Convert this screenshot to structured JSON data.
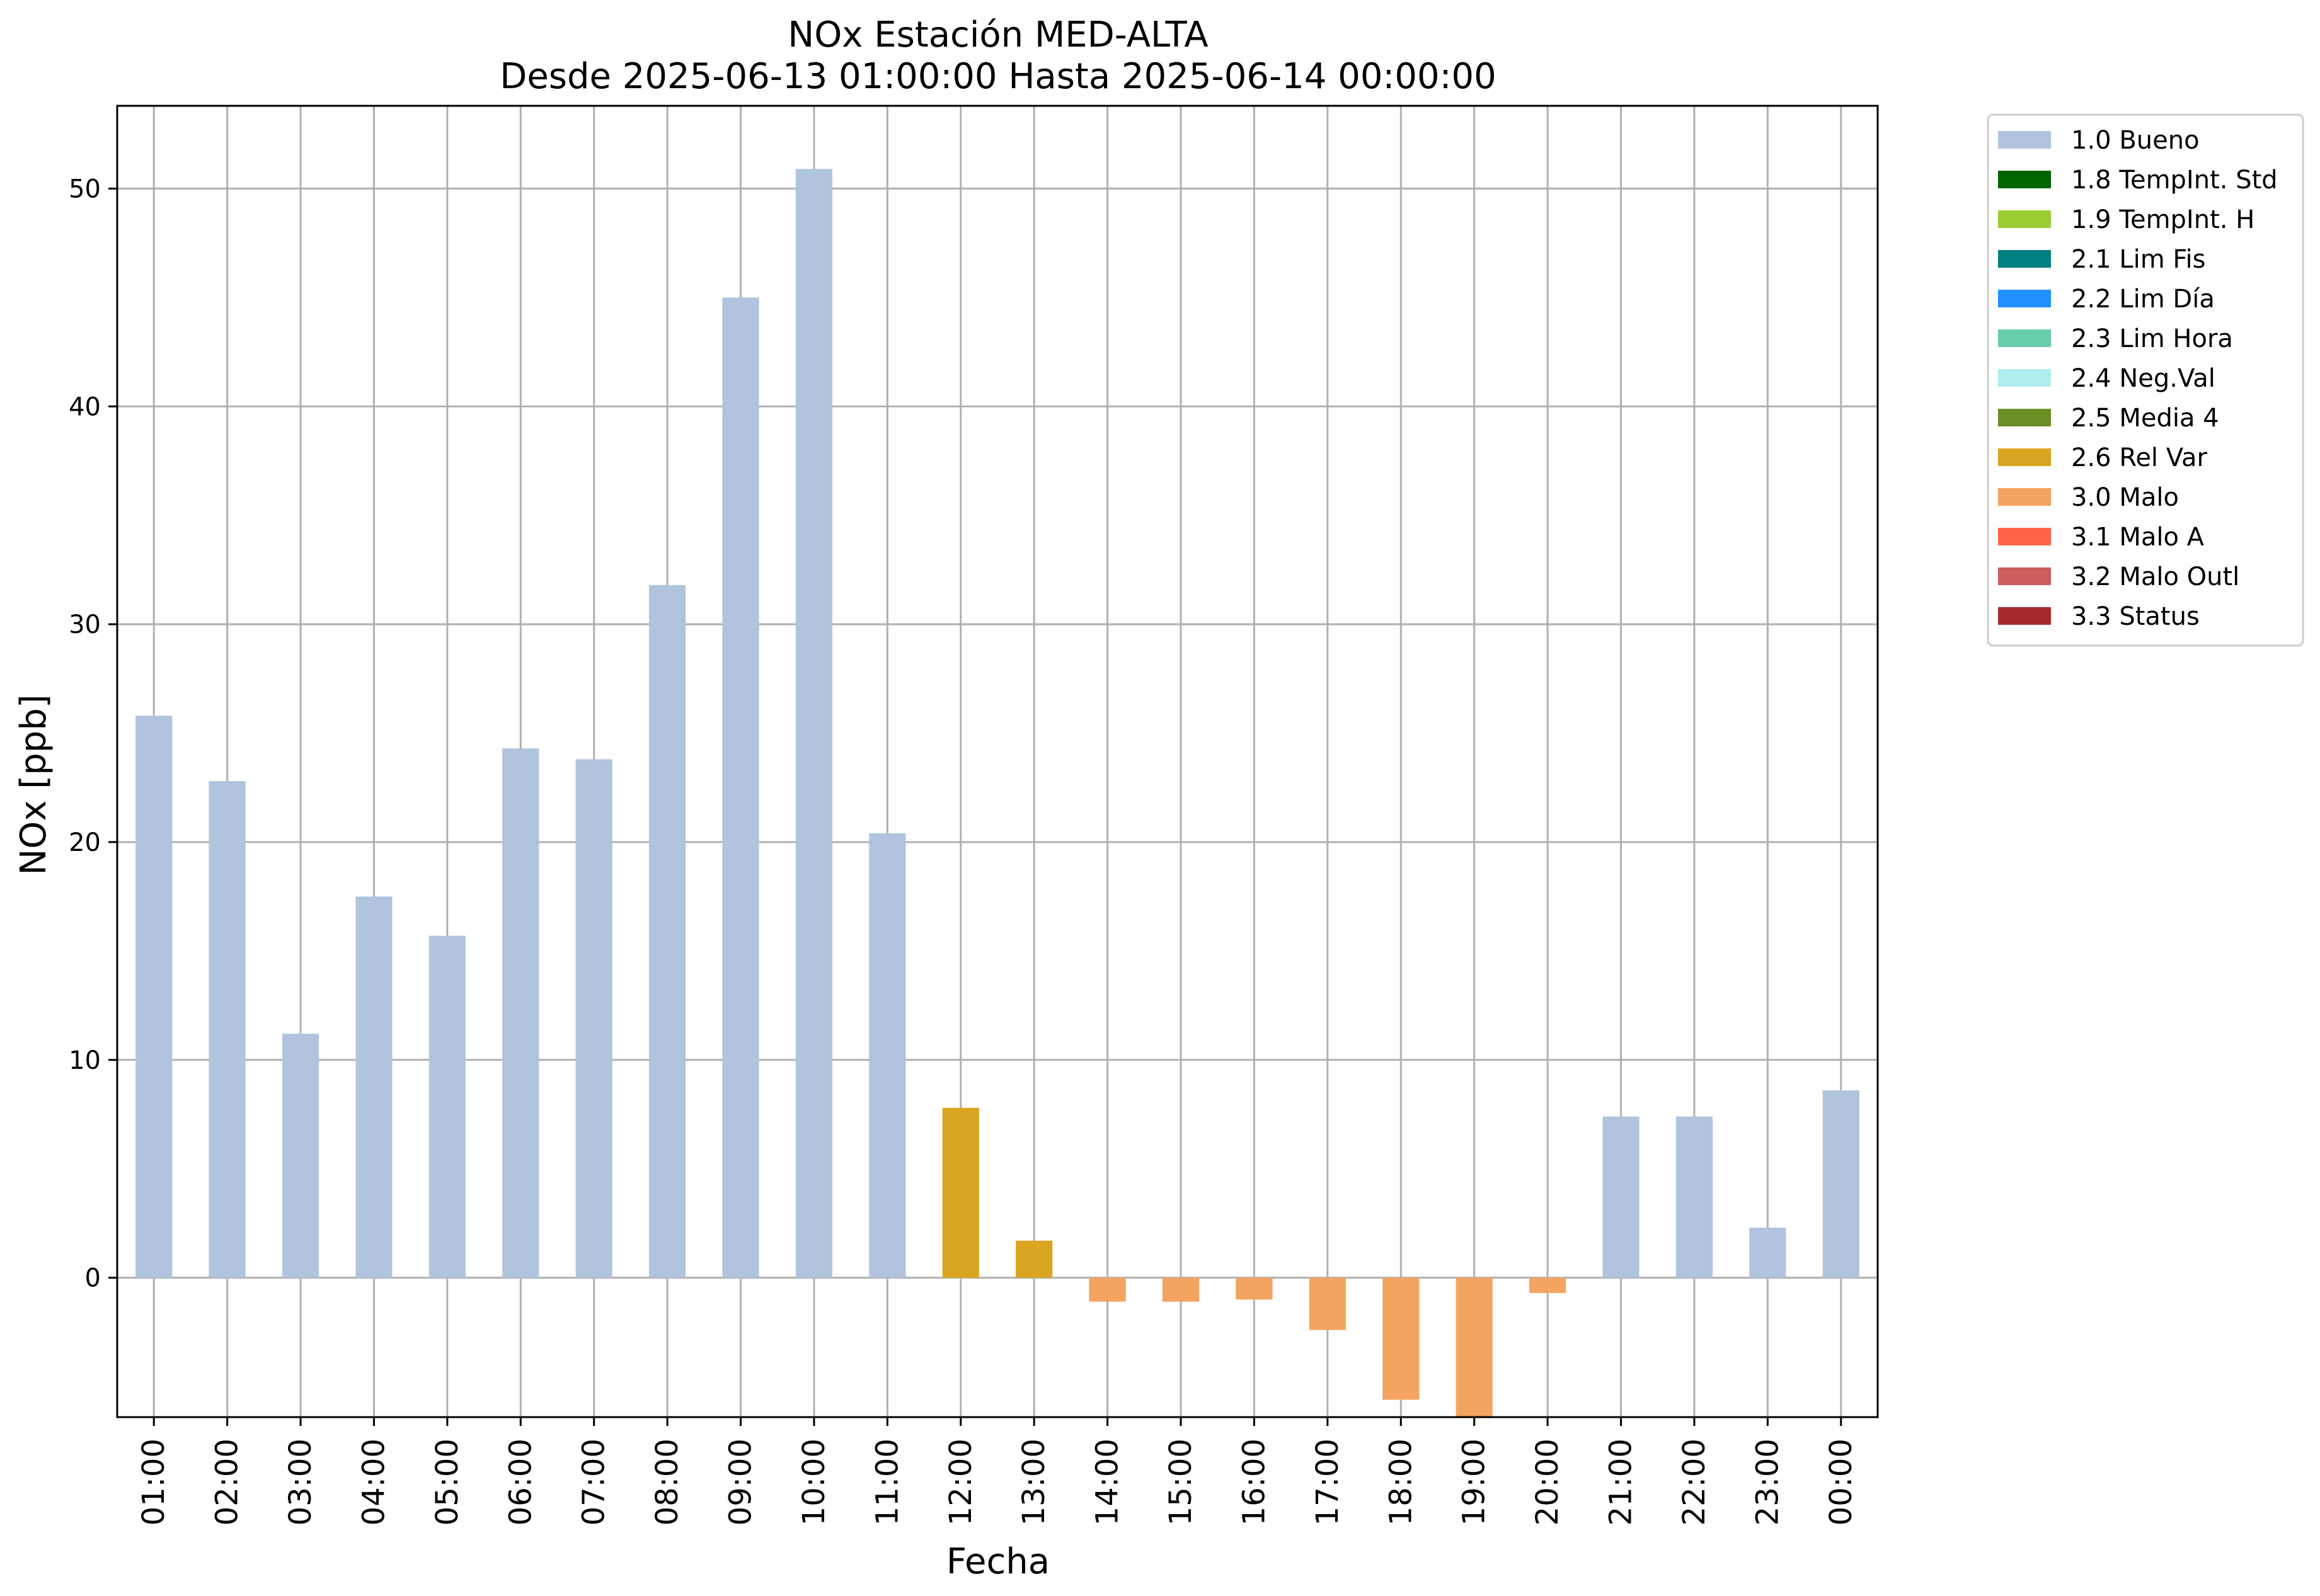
{
  "chart_data": {
    "type": "bar",
    "title": "NOx Estación MED-ALTA",
    "subtitle": "Desde 2025-06-13 01:00:00 Hasta 2025-06-14 00:00:00",
    "xlabel": "Fecha",
    "ylabel": "NOx [ppb]",
    "ylim": [
      -6.4,
      53.8
    ],
    "yticks": [
      0,
      10,
      20,
      30,
      40,
      50
    ],
    "grid": true,
    "legend_position": "outside-top-right",
    "categories": [
      "01:00",
      "02:00",
      "03:00",
      "04:00",
      "05:00",
      "06:00",
      "07:00",
      "08:00",
      "09:00",
      "10:00",
      "11:00",
      "12:00",
      "13:00",
      "14:00",
      "15:00",
      "16:00",
      "17:00",
      "18:00",
      "19:00",
      "20:00",
      "21:00",
      "22:00",
      "23:00",
      "00:00"
    ],
    "values": [
      25.8,
      22.8,
      11.2,
      17.5,
      15.7,
      24.3,
      23.8,
      31.8,
      45.0,
      50.9,
      20.4,
      7.8,
      1.7,
      -1.1,
      -1.1,
      -1.0,
      -2.4,
      -5.6,
      -6.4,
      -0.7,
      7.4,
      7.4,
      2.3,
      8.6
    ],
    "flags": [
      "1.0 Bueno",
      "1.0 Bueno",
      "1.0 Bueno",
      "1.0 Bueno",
      "1.0 Bueno",
      "1.0 Bueno",
      "1.0 Bueno",
      "1.0 Bueno",
      "1.0 Bueno",
      "1.0 Bueno",
      "1.0 Bueno",
      "2.6 Rel Var",
      "2.6 Rel Var",
      "3.0 Malo",
      "3.0 Malo",
      "3.0 Malo",
      "3.0 Malo",
      "3.0 Malo",
      "3.0 Malo",
      "3.0 Malo",
      "1.0 Bueno",
      "1.0 Bueno",
      "1.0 Bueno",
      "1.0 Bueno"
    ],
    "legend": [
      {
        "label": "1.0 Bueno",
        "color": "#b0c4de"
      },
      {
        "label": "1.8 TempInt. Std",
        "color": "#006400"
      },
      {
        "label": "1.9 TempInt. H",
        "color": "#9acd32"
      },
      {
        "label": "2.1 Lim Fis",
        "color": "#008080"
      },
      {
        "label": "2.2 Lim Día",
        "color": "#1e90ff"
      },
      {
        "label": "2.3 Lim Hora",
        "color": "#66cdaa"
      },
      {
        "label": "2.4 Neg.Val",
        "color": "#afeeee"
      },
      {
        "label": "2.5 Media 4",
        "color": "#6b8e23"
      },
      {
        "label": "2.6 Rel Var",
        "color": "#daa520"
      },
      {
        "label": "3.0 Malo",
        "color": "#f4a460"
      },
      {
        "label": "3.1 Malo A",
        "color": "#ff6347"
      },
      {
        "label": "3.2 Malo Outl",
        "color": "#cd5c5c"
      },
      {
        "label": "3.3 Status",
        "color": "#a52a2a"
      }
    ]
  }
}
